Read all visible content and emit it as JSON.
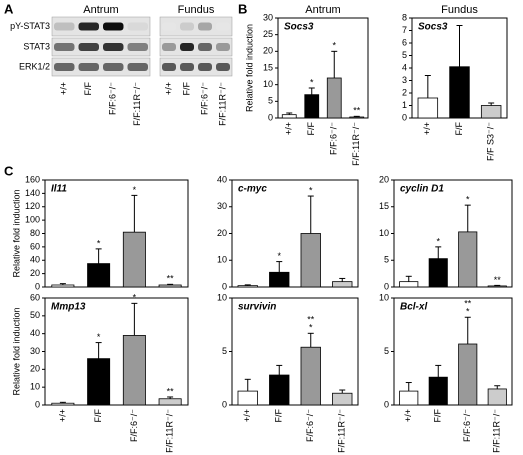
{
  "labels": {
    "panel_a": "A",
    "panel_b": "B",
    "panel_c": "C"
  },
  "blot": {
    "groups": [
      "Antrum",
      "Fundus"
    ],
    "rows": [
      "pY-STAT3",
      "STAT3",
      "ERK1/2"
    ],
    "columns": [
      [
        "+/+",
        "F/F",
        "F/F:6⁻/⁻",
        "F/F:11R⁻/⁻"
      ],
      [
        "+/+",
        "F/F",
        "F/F:6⁻/⁻",
        "F/F:11R⁻/⁻"
      ]
    ]
  },
  "chart_data": [
    {
      "type": "bar",
      "header": "Antrum",
      "title": "Socs3",
      "ylabel": "Relative fold induction",
      "categories": [
        "+/+",
        "F/F",
        "F/F:6⁻/⁻",
        "F/F:11R⁻/⁻"
      ],
      "values": [
        1,
        7,
        12,
        0.3
      ],
      "errors": [
        0.5,
        2,
        8,
        0.2
      ],
      "colors": [
        "#ffffff",
        "#000000",
        "#999999",
        "#cccccc"
      ],
      "annotations": [
        null,
        [
          "*"
        ],
        [
          "*"
        ],
        [
          "**"
        ]
      ],
      "ylim": [
        0,
        30
      ],
      "yticks": [
        0,
        5,
        10,
        15,
        20,
        25,
        30
      ]
    },
    {
      "type": "bar",
      "header": "Fundus",
      "title": "Socs3",
      "categories": [
        "+/+",
        "F/F",
        "F/F S3⁻/⁻"
      ],
      "values": [
        1.6,
        4.1,
        1.0
      ],
      "errors": [
        1.8,
        3.3,
        0.2
      ],
      "colors": [
        "#ffffff",
        "#000000",
        "#cccccc"
      ],
      "annotations": [
        null,
        null,
        null
      ],
      "ylim": [
        0,
        8
      ],
      "yticks": [
        0,
        1,
        2,
        3,
        4,
        5,
        6,
        7,
        8
      ]
    },
    {
      "type": "bar",
      "title": "Il11",
      "ylabel": "Relative fold induction",
      "values": [
        3,
        35,
        82,
        3
      ],
      "errors": [
        2,
        22,
        55,
        1
      ],
      "colors": [
        "#ffffff",
        "#000000",
        "#999999",
        "#cccccc"
      ],
      "annotations": [
        null,
        [
          "*"
        ],
        [
          "*"
        ],
        [
          "**"
        ]
      ],
      "ylim": [
        0,
        160
      ],
      "yticks": [
        0,
        20,
        40,
        60,
        80,
        100,
        120,
        140,
        160
      ]
    },
    {
      "type": "bar",
      "title": "c-myc",
      "values": [
        0.5,
        5.5,
        20,
        2
      ],
      "errors": [
        0.3,
        4,
        14,
        1.2
      ],
      "colors": [
        "#ffffff",
        "#000000",
        "#999999",
        "#cccccc"
      ],
      "annotations": [
        null,
        [
          "*"
        ],
        [
          "*"
        ],
        null
      ],
      "ylim": [
        0,
        40
      ],
      "yticks": [
        0,
        10,
        20,
        30,
        40
      ]
    },
    {
      "type": "bar",
      "title": "cyclin D1",
      "values": [
        1,
        5.3,
        10.3,
        0.2
      ],
      "errors": [
        1,
        2.2,
        5,
        0.1
      ],
      "colors": [
        "#ffffff",
        "#000000",
        "#999999",
        "#cccccc"
      ],
      "annotations": [
        null,
        [
          "*"
        ],
        [
          "*"
        ],
        [
          "**"
        ]
      ],
      "ylim": [
        0,
        20
      ],
      "yticks": [
        0,
        5,
        10,
        15,
        20
      ]
    },
    {
      "type": "bar",
      "title": "Mmp13",
      "ylabel": "Relative fold induction",
      "categories": [
        "+/+",
        "F/F",
        "F/F:6⁻/⁻",
        "F/F:11R⁻/⁻"
      ],
      "values": [
        1,
        26,
        39,
        3.5
      ],
      "errors": [
        0.5,
        9,
        18,
        1
      ],
      "colors": [
        "#ffffff",
        "#000000",
        "#999999",
        "#cccccc"
      ],
      "annotations": [
        null,
        [
          "*"
        ],
        [
          "*"
        ],
        [
          "**"
        ]
      ],
      "ylim": [
        0,
        60
      ],
      "yticks": [
        0,
        10,
        20,
        30,
        40,
        50,
        60
      ]
    },
    {
      "type": "bar",
      "title": "survivin",
      "categories": [
        "+/+",
        "F/F",
        "F/F:6⁻/⁻",
        "F/F:11R⁻/⁻"
      ],
      "values": [
        1.3,
        2.8,
        5.4,
        1.1
      ],
      "errors": [
        1.1,
        0.9,
        1.3,
        0.3
      ],
      "colors": [
        "#ffffff",
        "#000000",
        "#999999",
        "#cccccc"
      ],
      "annotations": [
        null,
        null,
        [
          "**",
          "*"
        ],
        null
      ],
      "ylim": [
        0,
        10
      ],
      "yticks": [
        0,
        5,
        10
      ]
    },
    {
      "type": "bar",
      "title": "Bcl-xl",
      "categories": [
        "+/+",
        "F/F",
        "F/F:6⁻/⁻",
        "F/F:11R⁻/⁻"
      ],
      "values": [
        1.3,
        2.6,
        5.7,
        1.5
      ],
      "errors": [
        0.8,
        1.1,
        2.5,
        0.3
      ],
      "colors": [
        "#ffffff",
        "#000000",
        "#999999",
        "#cccccc"
      ],
      "annotations": [
        null,
        null,
        [
          "**",
          "*"
        ],
        null
      ],
      "ylim": [
        0,
        10
      ],
      "yticks": [
        0,
        5,
        10
      ]
    }
  ]
}
